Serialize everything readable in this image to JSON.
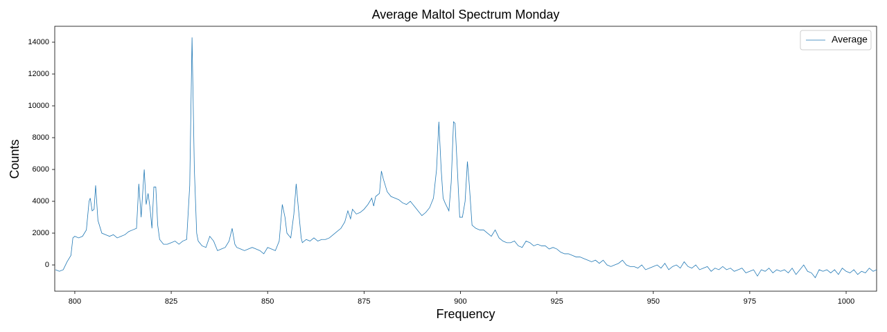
{
  "chart_data": {
    "type": "line",
    "title": "Average Maltol Spectrum Monday",
    "xlabel": "Frequency",
    "ylabel": "Counts",
    "x": [
      795,
      796,
      797,
      798,
      799,
      799.5,
      800,
      801,
      802,
      803,
      803.7,
      804,
      804.5,
      805,
      805.4,
      806,
      807,
      808,
      809,
      810,
      811,
      812,
      813,
      814,
      815,
      816,
      816.6,
      817.2,
      818,
      818.5,
      819,
      819.5,
      820,
      820.5,
      821,
      821.5,
      822,
      823,
      824,
      825,
      826,
      827,
      828,
      829,
      829.8,
      830.4,
      831,
      831.6,
      832,
      833,
      834,
      835,
      836,
      837,
      838,
      839,
      840,
      840.8,
      841.5,
      842,
      843,
      844,
      845,
      846,
      847,
      848,
      849,
      850,
      851,
      852,
      853,
      853.8,
      854.5,
      855,
      856,
      856.8,
      857.4,
      858,
      858.7,
      859,
      860,
      861,
      862,
      863,
      864,
      865,
      866,
      867,
      868,
      869,
      870,
      870.8,
      871.5,
      872,
      873,
      874,
      875,
      876,
      877,
      877.5,
      878,
      879,
      879.5,
      880,
      881,
      882,
      883,
      884,
      885,
      886,
      887,
      888,
      889,
      890,
      891,
      892,
      893,
      893.8,
      894.4,
      895,
      895.5,
      896,
      897,
      897.6,
      898.2,
      898.6,
      899.2,
      899.8,
      900.5,
      901.2,
      901.8,
      902.3,
      903,
      904,
      905,
      906,
      907,
      908,
      909,
      910,
      911,
      912,
      913,
      914,
      915,
      916,
      917,
      918,
      919,
      920,
      921,
      922,
      923,
      924,
      925,
      926,
      927,
      928,
      929,
      930,
      931,
      932,
      933,
      934,
      935,
      936,
      937,
      938,
      939,
      940,
      941,
      942,
      943,
      944,
      945,
      946,
      947,
      948,
      949,
      950,
      951,
      952,
      953,
      954,
      955,
      956,
      957,
      958,
      959,
      960,
      961,
      962,
      963,
      964,
      965,
      966,
      967,
      968,
      969,
      970,
      971,
      972,
      973,
      974,
      975,
      976,
      977,
      978,
      979,
      980,
      981,
      982,
      983,
      984,
      985,
      986,
      987,
      988,
      989,
      990,
      991,
      992,
      993,
      994,
      995,
      996,
      997,
      998,
      999,
      1000,
      1001,
      1002,
      1003,
      1004,
      1005,
      1006,
      1007,
      1007.9
    ],
    "series": [
      {
        "name": "Average",
        "color": "#1f77b4",
        "values": [
          -300,
          -400,
          -300,
          200,
          600,
          1700,
          1800,
          1700,
          1800,
          2200,
          4000,
          4200,
          3400,
          3500,
          5000,
          2800,
          2000,
          1900,
          1800,
          1900,
          1700,
          1800,
          1900,
          2100,
          2200,
          2300,
          5100,
          3000,
          6000,
          3800,
          4500,
          3600,
          2300,
          4900,
          4900,
          2500,
          1600,
          1300,
          1300,
          1400,
          1500,
          1300,
          1500,
          1600,
          5000,
          14300,
          6000,
          2000,
          1500,
          1200,
          1100,
          1800,
          1500,
          900,
          1000,
          1100,
          1500,
          2300,
          1300,
          1100,
          1000,
          900,
          1000,
          1100,
          1000,
          900,
          700,
          1100,
          1000,
          900,
          1500,
          3800,
          3000,
          2000,
          1700,
          3200,
          5100,
          3500,
          1700,
          1400,
          1600,
          1500,
          1700,
          1500,
          1600,
          1600,
          1700,
          1900,
          2100,
          2300,
          2700,
          3400,
          2900,
          3500,
          3200,
          3300,
          3500,
          3800,
          4200,
          3700,
          4300,
          4500,
          5900,
          5400,
          4600,
          4300,
          4200,
          4100,
          3900,
          3800,
          4000,
          3700,
          3400,
          3100,
          3300,
          3600,
          4200,
          6000,
          9000,
          6000,
          4200,
          3900,
          3400,
          5200,
          9000,
          8900,
          6000,
          3000,
          3000,
          4000,
          6500,
          5000,
          2500,
          2300,
          2200,
          2200,
          2000,
          1800,
          2200,
          1700,
          1500,
          1400,
          1400,
          1500,
          1200,
          1100,
          1500,
          1400,
          1200,
          1300,
          1200,
          1200,
          1000,
          1100,
          1000,
          800,
          700,
          700,
          600,
          500,
          500,
          400,
          300,
          200,
          300,
          100,
          300,
          0,
          -100,
          0,
          100,
          300,
          0,
          -100,
          -100,
          -200,
          0,
          -300,
          -200,
          -100,
          0,
          -200,
          100,
          -300,
          -100,
          0,
          -200,
          200,
          -100,
          -200,
          0,
          -300,
          -200,
          -100,
          -400,
          -200,
          -300,
          -100,
          -300,
          -200,
          -400,
          -300,
          -200,
          -500,
          -400,
          -300,
          -700,
          -300,
          -400,
          -200,
          -500,
          -300,
          -400,
          -300,
          -500,
          -200,
          -600,
          -300,
          0,
          -400,
          -500,
          -800,
          -300,
          -400,
          -300,
          -500,
          -300,
          -600,
          -200,
          -400,
          -500,
          -300,
          -600,
          -400,
          -500,
          -200,
          -400,
          -300
        ]
      }
    ],
    "xlim": [
      794.8,
      1007.9
    ],
    "ylim": [
      -1650,
      15000
    ],
    "xticks": [
      800,
      825,
      850,
      875,
      900,
      925,
      950,
      975,
      1000
    ],
    "yticks": [
      0,
      2000,
      4000,
      6000,
      8000,
      10000,
      12000,
      14000
    ],
    "legend": "upper right",
    "grid": false
  }
}
